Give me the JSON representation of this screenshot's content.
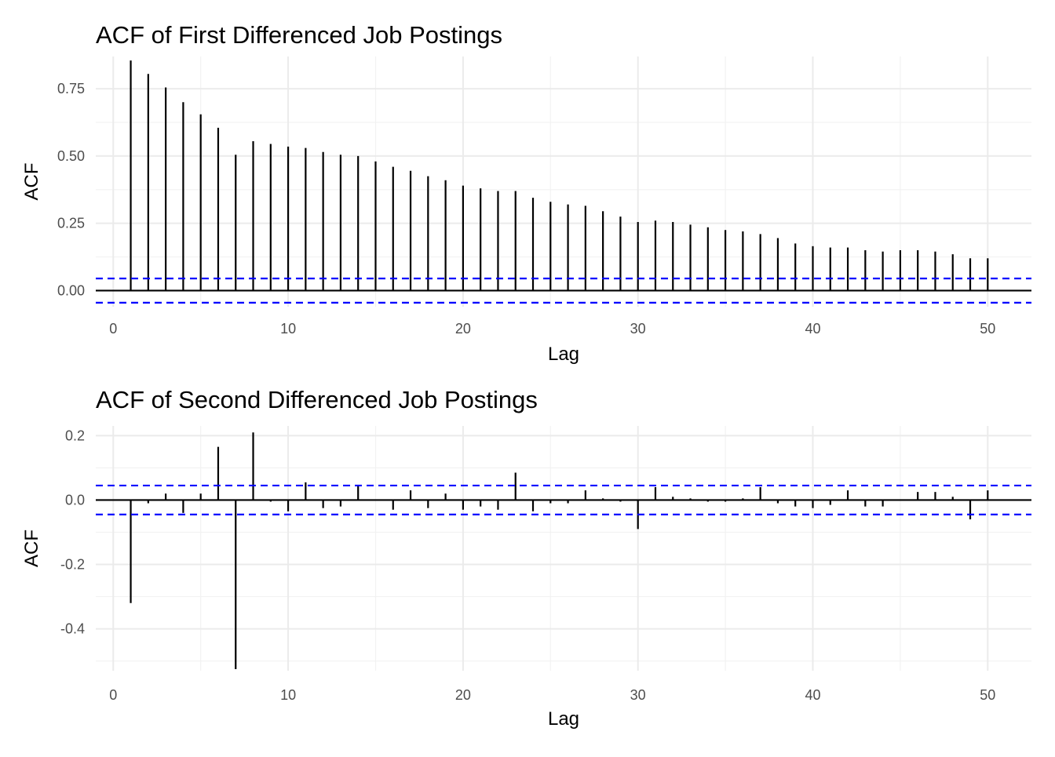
{
  "colors": {
    "stem": "#000000",
    "ci": "#0000ff",
    "grid_major": "#ebebeb",
    "grid_minor": "#f2f2f2",
    "tick_text": "#4d4d4d"
  },
  "chart_data": [
    {
      "type": "bar",
      "title": "ACF of First Differenced Job Postings",
      "xlabel": "Lag",
      "ylabel": "ACF",
      "xlim": [
        -1,
        52.5
      ],
      "ylim": [
        -0.06,
        0.87
      ],
      "xticks": [
        0,
        10,
        20,
        30,
        40,
        50
      ],
      "xtick_labels": [
        "0",
        "10",
        "20",
        "30",
        "40",
        "50"
      ],
      "yticks": [
        0.0,
        0.25,
        0.5,
        0.75
      ],
      "ytick_labels": [
        "0.00",
        "0.25",
        "0.50",
        "0.75"
      ],
      "grid": true,
      "ci": 0.045,
      "x": [
        1,
        2,
        3,
        4,
        5,
        6,
        7,
        8,
        9,
        10,
        11,
        12,
        13,
        14,
        15,
        16,
        17,
        18,
        19,
        20,
        21,
        22,
        23,
        24,
        25,
        26,
        27,
        28,
        29,
        30,
        31,
        32,
        33,
        34,
        35,
        36,
        37,
        38,
        39,
        40,
        41,
        42,
        43,
        44,
        45,
        46,
        47,
        48,
        49,
        50
      ],
      "values": [
        0.855,
        0.805,
        0.755,
        0.7,
        0.655,
        0.605,
        0.505,
        0.555,
        0.545,
        0.535,
        0.53,
        0.515,
        0.505,
        0.5,
        0.48,
        0.46,
        0.445,
        0.425,
        0.41,
        0.39,
        0.38,
        0.37,
        0.37,
        0.345,
        0.33,
        0.32,
        0.315,
        0.295,
        0.275,
        0.255,
        0.26,
        0.255,
        0.245,
        0.235,
        0.225,
        0.22,
        0.21,
        0.195,
        0.175,
        0.165,
        0.16,
        0.16,
        0.15,
        0.145,
        0.15,
        0.15,
        0.145,
        0.135,
        0.12,
        0.12
      ]
    },
    {
      "type": "bar",
      "title": "ACF of Second Differenced Job Postings",
      "xlabel": "Lag",
      "ylabel": "ACF",
      "xlim": [
        -1,
        52.5
      ],
      "ylim": [
        -0.53,
        0.23
      ],
      "xticks": [
        0,
        10,
        20,
        30,
        40,
        50
      ],
      "xtick_labels": [
        "0",
        "10",
        "20",
        "30",
        "40",
        "50"
      ],
      "yticks": [
        -0.4,
        -0.2,
        0.0,
        0.2
      ],
      "ytick_labels": [
        "-0.4",
        "-0.2",
        "0.0",
        "0.2"
      ],
      "grid": true,
      "ci": 0.045,
      "x": [
        1,
        2,
        3,
        4,
        5,
        6,
        7,
        8,
        9,
        10,
        11,
        12,
        13,
        14,
        15,
        16,
        17,
        18,
        19,
        20,
        21,
        22,
        23,
        24,
        25,
        26,
        27,
        28,
        29,
        30,
        31,
        32,
        33,
        34,
        35,
        36,
        37,
        38,
        39,
        40,
        41,
        42,
        43,
        44,
        45,
        46,
        47,
        48,
        49,
        50
      ],
      "values": [
        -0.32,
        -0.01,
        0.02,
        -0.04,
        0.02,
        0.165,
        -0.525,
        0.21,
        -0.005,
        -0.035,
        0.055,
        -0.025,
        -0.02,
        0.045,
        0.0,
        -0.03,
        0.03,
        -0.025,
        0.02,
        -0.03,
        -0.02,
        -0.03,
        0.085,
        -0.035,
        -0.01,
        -0.01,
        0.03,
        0.005,
        -0.005,
        -0.09,
        0.04,
        0.01,
        0.005,
        -0.005,
        -0.005,
        0.005,
        0.04,
        -0.01,
        -0.02,
        -0.025,
        -0.015,
        0.03,
        -0.02,
        -0.02,
        0.0,
        0.025,
        0.025,
        0.01,
        -0.06,
        0.03
      ]
    }
  ]
}
